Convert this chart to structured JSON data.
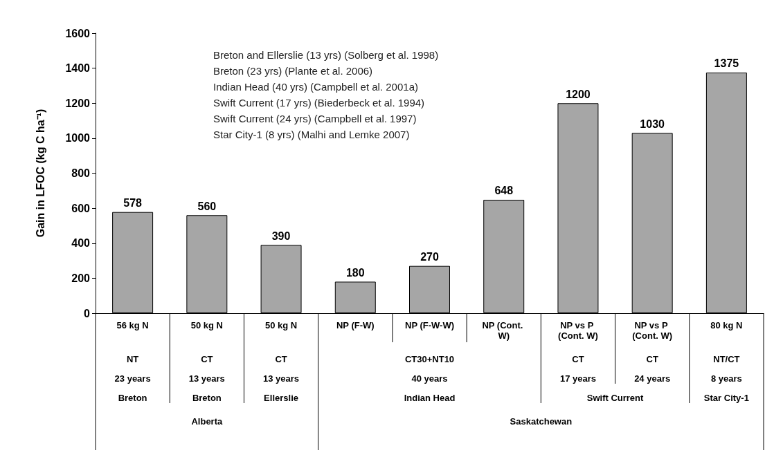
{
  "chart_data": {
    "type": "bar",
    "ylabel": "Gain in LFOC (kg C ha⁻¹)",
    "categories": [
      "56 kg N",
      "50 kg N",
      "50 kg N",
      "NP (F-W)",
      "NP (F-W-W)",
      "NP (Cont. W)",
      "NP vs P (Cont. W)",
      "NP vs P (Cont. W)",
      "80 kg N"
    ],
    "values": [
      578,
      560,
      390,
      180,
      270,
      648,
      1200,
      1030,
      1375
    ],
    "color": "#a6a6a6",
    "data_labels": true,
    "ylim": [
      0,
      1600
    ],
    "yticks": [
      0,
      200,
      400,
      600,
      800,
      1000,
      1200,
      1400,
      1600
    ],
    "annotations": [
      "Breton and Ellerslie (13 yrs) (Solberg et al. 1998)",
      "Breton (23 yrs) (Plante et al. 2006)",
      "Indian Head (40 yrs) (Campbell et al. 2001a)",
      "Swift Current (17 yrs) (Biederbeck et al. 1994)",
      "Swift Current (24 yrs) (Campbell et al. 1997)",
      "Star City-1 (8 yrs) (Malhi and Lemke 2007)",
      "NT",
      "CT",
      "CT",
      "CT30+NT10",
      "CT",
      "CT",
      "NT/CT",
      "23 years",
      "13 years",
      "13 years",
      "40 years",
      "17 years",
      "24 years",
      "8 years",
      "Breton",
      "Breton",
      "Ellerslie",
      "Indian Head",
      "Swift Current",
      "Star City-1",
      "Alberta",
      "Saskatchewan"
    ]
  }
}
